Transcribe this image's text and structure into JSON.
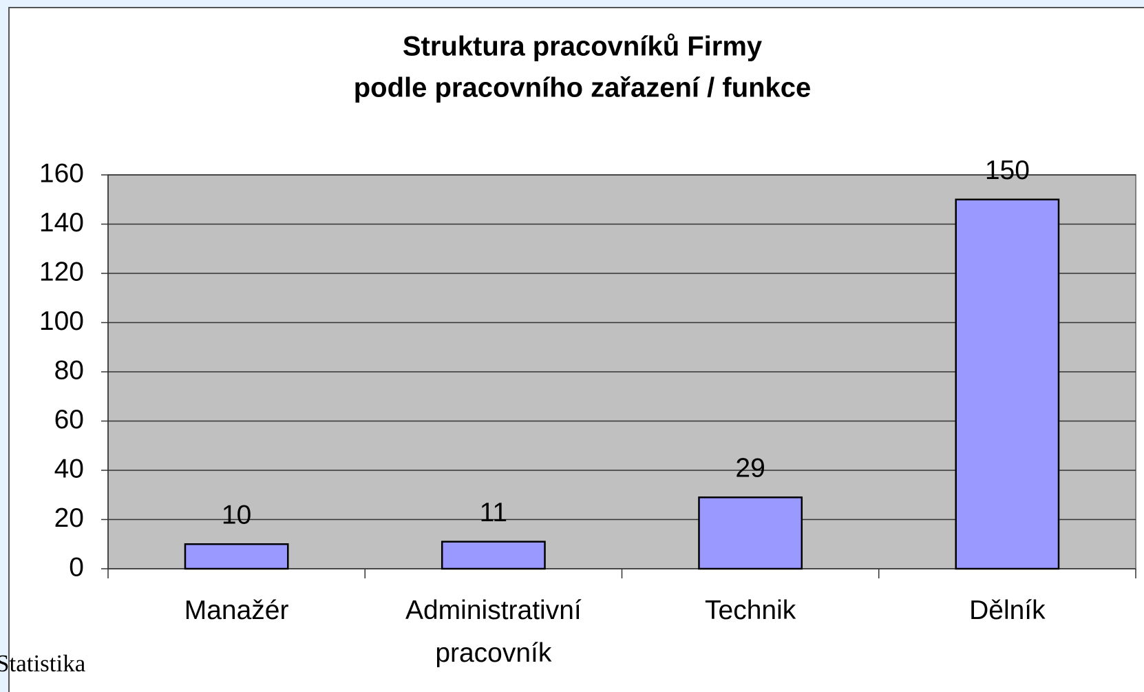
{
  "chart_data": {
    "type": "bar",
    "title": [
      "Struktura pracovníků Firmy",
      "podle pracovního zařazení / funkce"
    ],
    "categories": [
      "Manažér",
      "Administrativní pracovník",
      "Technik",
      "Dělník"
    ],
    "values": [
      10,
      11,
      29,
      150
    ],
    "color": "#9999ff",
    "ylim": [
      0,
      160
    ],
    "yticks": [
      0,
      20,
      40,
      60,
      80,
      100,
      120,
      140,
      160
    ],
    "grid": true
  },
  "footer": "Statistika"
}
